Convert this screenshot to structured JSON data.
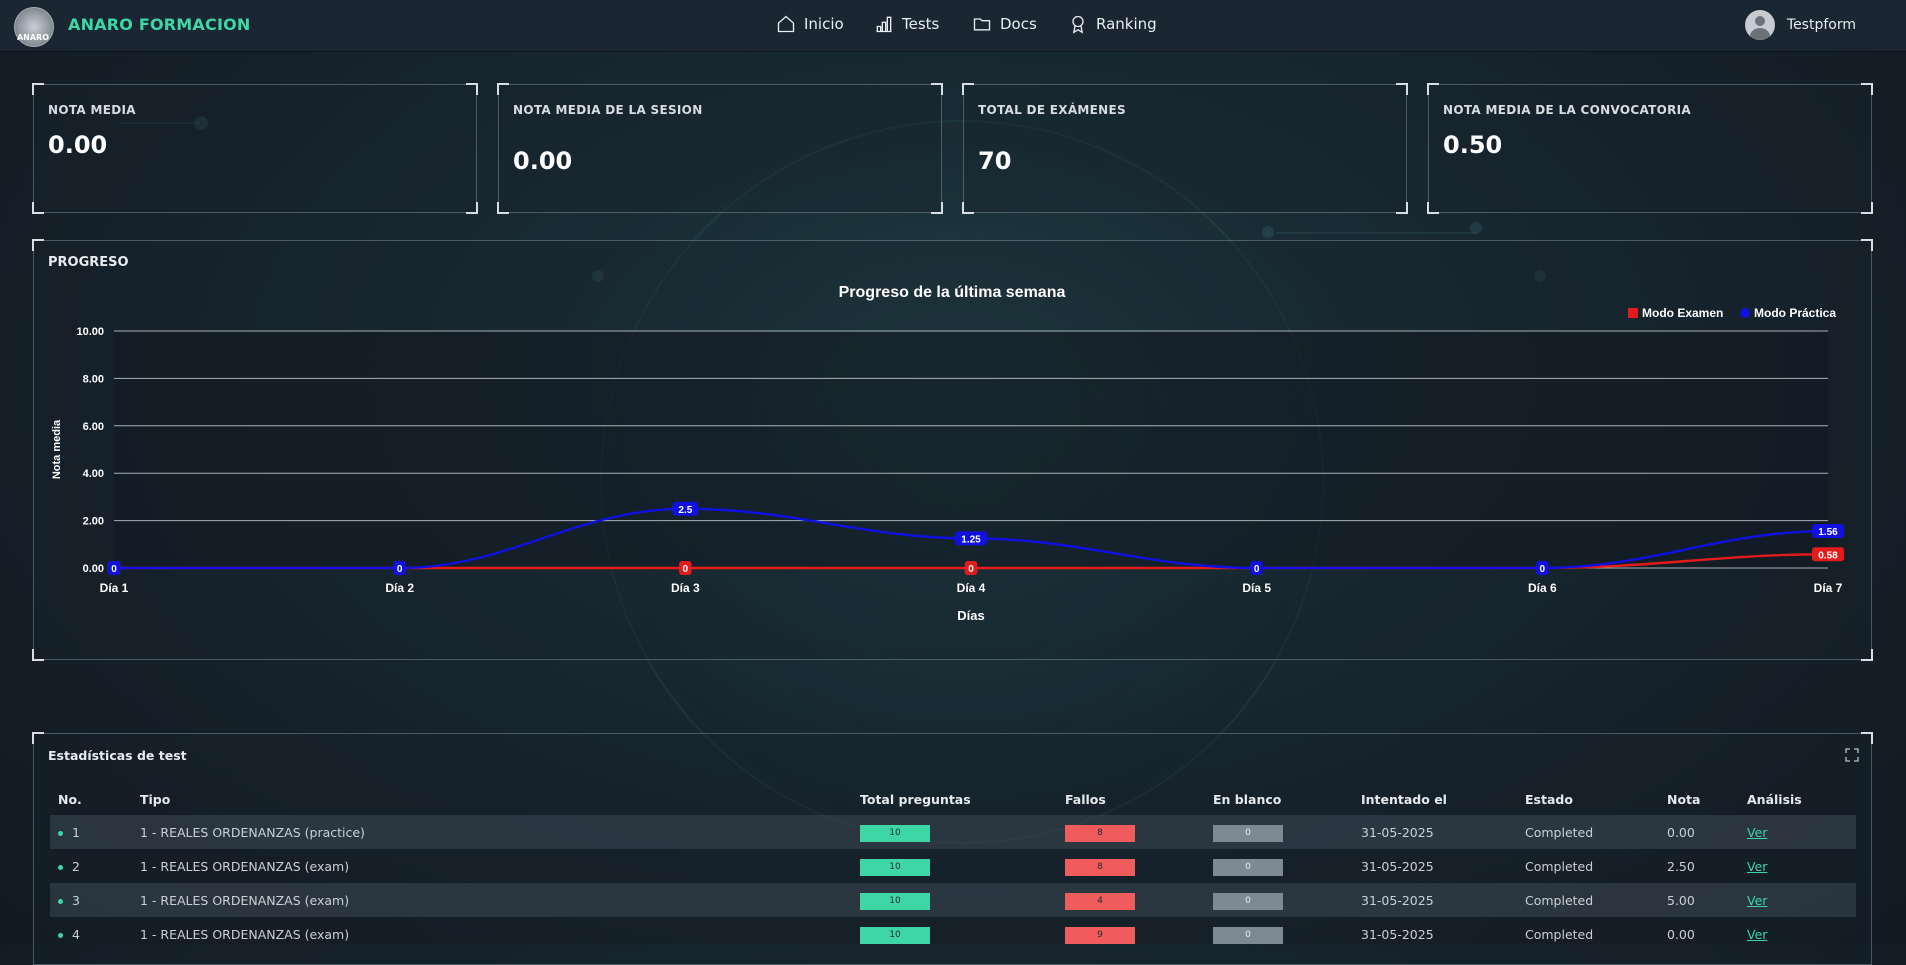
{
  "app": {
    "brand": "ANARO FORMACION",
    "logo_text": "ANARO",
    "nav": [
      {
        "label": "Inicio",
        "icon": "home-icon"
      },
      {
        "label": "Tests",
        "icon": "bar-chart-icon"
      },
      {
        "label": "Docs",
        "icon": "folder-icon"
      },
      {
        "label": "Ranking",
        "icon": "award-icon"
      }
    ],
    "user_name": "Testpform",
    "accent": "#3fd6a6"
  },
  "stats": [
    {
      "label": "NOTA MEDIA",
      "value": "0.00"
    },
    {
      "label": "NOTA MEDIA DE LA SESION",
      "value": "0.00"
    },
    {
      "label": "TOTAL DE EXÁMENES",
      "value": "70"
    },
    {
      "label": "NOTA MEDIA DE LA CONVOCATORIA",
      "value": "0.50"
    }
  ],
  "progress": {
    "section_title": "PROGRESO"
  },
  "chart_data": {
    "type": "line",
    "title": "Progreso de la última semana",
    "xlabel": "Días",
    "ylabel": "Nota media",
    "categories": [
      "Día 1",
      "Día 2",
      "Día 3",
      "Día 4",
      "Día 5",
      "Día 6",
      "Día 7"
    ],
    "ylim": [
      0,
      10
    ],
    "yticks": [
      "0.00",
      "2.00",
      "4.00",
      "6.00",
      "8.00",
      "10.00"
    ],
    "grid": true,
    "legend_position": "top-right",
    "series": [
      {
        "name": "Modo Examen",
        "color": "#e31b1b",
        "values": [
          0,
          0,
          0,
          0,
          0,
          0,
          0.58
        ],
        "labels": [
          "0",
          "",
          "0",
          "0",
          "",
          "",
          "0.58"
        ]
      },
      {
        "name": "Modo Práctica",
        "color": "#1010e0",
        "values": [
          0,
          0,
          2.5,
          1.25,
          0,
          0,
          1.56
        ],
        "labels": [
          "0",
          "0",
          "2.5",
          "1.25",
          "0",
          "0",
          "1.56"
        ]
      }
    ]
  },
  "table": {
    "title": "Estadísticas de test",
    "columns": [
      "No.",
      "Tipo",
      "Total preguntas",
      "Fallos",
      "En blanco",
      "Intentado el",
      "Estado",
      "Nota",
      "Análisis"
    ],
    "rows": [
      {
        "no": "1",
        "tipo": "1 - REALES ORDENANZAS (practice)",
        "total": "10",
        "fallos": "8",
        "blanco": "0",
        "fecha": "31-05-2025",
        "estado": "Completed",
        "nota": "0.00",
        "analisis": "Ver"
      },
      {
        "no": "2",
        "tipo": "1 - REALES ORDENANZAS (exam)",
        "total": "10",
        "fallos": "8",
        "blanco": "0",
        "fecha": "31-05-2025",
        "estado": "Completed",
        "nota": "2.50",
        "analisis": "Ver"
      },
      {
        "no": "3",
        "tipo": "1 - REALES ORDENANZAS (exam)",
        "total": "10",
        "fallos": "4",
        "blanco": "0",
        "fecha": "31-05-2025",
        "estado": "Completed",
        "nota": "5.00",
        "analisis": "Ver"
      },
      {
        "no": "4",
        "tipo": "1 - REALES ORDENANZAS (exam)",
        "total": "10",
        "fallos": "9",
        "blanco": "0",
        "fecha": "31-05-2025",
        "estado": "Completed",
        "nota": "0.00",
        "analisis": "Ver"
      }
    ]
  }
}
